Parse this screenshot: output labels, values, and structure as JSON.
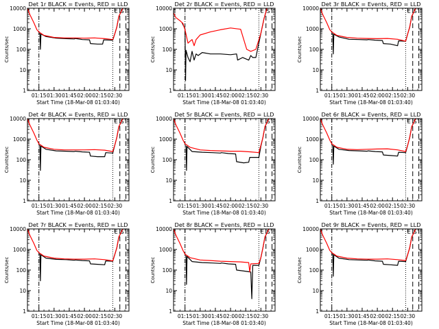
{
  "colors": {
    "events": "#000000",
    "lld": "#ff0000",
    "background": "#ffffff",
    "axis": "#000000"
  },
  "chart_data": [
    {
      "type": "line",
      "title": "Det 1r BLACK = Events, RED = LLD",
      "xlabel": "Start Time (18-Mar-08 01:03:40)",
      "ylabel": "Counts/sec",
      "x_ticks": [
        "01:15",
        "01:30",
        "01:45",
        "02:00",
        "02:15",
        "02:30"
      ],
      "y_ticks": [
        "1",
        "10",
        "100",
        "1000",
        "10000"
      ],
      "y_scale": "log",
      "ylim": [
        1,
        10000
      ],
      "xlim_minutes": [
        63.67,
        164
      ],
      "markers": [
        "E",
        "S"
      ],
      "series": [
        {
          "name": "Events",
          "color": "#000000",
          "x": [
            75,
            76,
            76.5,
            77,
            82,
            92,
            102,
            110,
            111,
            118,
            125,
            126,
            133,
            138,
            139,
            148,
            150,
            152,
            154,
            158
          ],
          "y": [
            600,
            580,
            100,
            560,
            420,
            350,
            330,
            320,
            340,
            300,
            290,
            190,
            180,
            180,
            290,
            280,
            560,
            1200,
            4000,
            10000
          ]
        },
        {
          "name": "LLD",
          "color": "#ff0000",
          "x": [
            63.67,
            66,
            70,
            73,
            75,
            80,
            90,
            100,
            110,
            120,
            130,
            140,
            148,
            150,
            152,
            154,
            158
          ],
          "y": [
            10000,
            5000,
            2000,
            900,
            700,
            480,
            380,
            360,
            360,
            350,
            360,
            330,
            300,
            560,
            1200,
            4000,
            10000
          ]
        }
      ]
    },
    {
      "type": "line",
      "title": "Det 2r BLACK = Events, RED = LLD",
      "xlabel": "Start Time (18-Mar-08 01:03:40)",
      "ylabel": "Counts/sec",
      "x_ticks": [
        "01:15",
        "01:30",
        "01:45",
        "02:00",
        "02:15",
        "02:30"
      ],
      "y_ticks": [
        "1",
        "10",
        "100",
        "1000",
        "10000"
      ],
      "y_scale": "log",
      "ylim": [
        1,
        10000
      ],
      "xlim_minutes": [
        63.67,
        164
      ],
      "markers": [
        "E",
        "S"
      ],
      "series": [
        {
          "name": "Events",
          "color": "#000000",
          "x": [
            72,
            75,
            75.5,
            76,
            78,
            80,
            82,
            84,
            86,
            88,
            92,
            100,
            110,
            120,
            126,
            127,
            132,
            138,
            140,
            142,
            145,
            150,
            153,
            156
          ],
          "y": [
            2000,
            1000,
            3,
            90,
            40,
            25,
            80,
            30,
            60,
            50,
            70,
            60,
            60,
            55,
            60,
            30,
            40,
            30,
            50,
            40,
            40,
            600,
            3000,
            10000
          ]
        },
        {
          "name": "LLD",
          "color": "#ff0000",
          "x": [
            63.67,
            66,
            70,
            73,
            75,
            78,
            80,
            82,
            84,
            86,
            90,
            100,
            110,
            120,
            130,
            136,
            140,
            145,
            150,
            153,
            156
          ],
          "y": [
            6000,
            3500,
            2500,
            1800,
            900,
            200,
            250,
            300,
            150,
            300,
            500,
            700,
            900,
            1100,
            950,
            100,
            80,
            100,
            600,
            3000,
            10000
          ]
        }
      ]
    },
    {
      "type": "line",
      "title": "Det 3r BLACK = Events, RED = LLD",
      "xlabel": "Start Time (18-Mar-08 01:03:40)",
      "ylabel": "Counts/sec",
      "x_ticks": [
        "01:15",
        "01:30",
        "01:45",
        "02:00",
        "02:15",
        "02:30"
      ],
      "y_ticks": [
        "1",
        "10",
        "100",
        "1000",
        "10000"
      ],
      "y_scale": "log",
      "ylim": [
        1,
        10000
      ],
      "xlim_minutes": [
        63.67,
        164
      ],
      "markers": [
        "E",
        "S"
      ],
      "series": [
        {
          "name": "Events",
          "color": "#000000",
          "x": [
            75,
            76,
            76.5,
            77,
            82,
            92,
            102,
            110,
            111,
            118,
            125,
            126,
            133,
            140,
            141,
            148,
            150,
            152,
            154,
            158
          ],
          "y": [
            600,
            560,
            60,
            540,
            400,
            310,
            300,
            290,
            300,
            280,
            270,
            190,
            180,
            150,
            260,
            250,
            560,
            1200,
            4000,
            10000
          ]
        },
        {
          "name": "LLD",
          "color": "#ff0000",
          "x": [
            63.67,
            66,
            70,
            73,
            75,
            80,
            90,
            100,
            110,
            120,
            130,
            140,
            148,
            150,
            152,
            154,
            158
          ],
          "y": [
            10000,
            5000,
            2000,
            900,
            700,
            480,
            380,
            350,
            340,
            330,
            340,
            310,
            250,
            560,
            1200,
            4000,
            10000
          ]
        }
      ]
    },
    {
      "type": "line",
      "title": "Det 4r BLACK = Events, RED = LLD",
      "xlabel": "Start Time (18-Mar-08 01:03:40)",
      "ylabel": "Counts/sec",
      "x_ticks": [
        "01:15",
        "01:30",
        "01:45",
        "02:00",
        "02:15",
        "02:30"
      ],
      "y_ticks": [
        "1",
        "10",
        "100",
        "1000",
        "10000"
      ],
      "y_scale": "log",
      "ylim": [
        1,
        10000
      ],
      "xlim_minutes": [
        63.67,
        164
      ],
      "markers": [
        "E",
        "S"
      ],
      "series": [
        {
          "name": "Events",
          "color": "#000000",
          "x": [
            75,
            76,
            76.5,
            77,
            82,
            92,
            102,
            110,
            111,
            118,
            125,
            126,
            133,
            140,
            141,
            148,
            150,
            152,
            154,
            158
          ],
          "y": [
            500,
            480,
            30,
            460,
            320,
            270,
            260,
            250,
            260,
            240,
            230,
            150,
            140,
            140,
            220,
            210,
            500,
            1200,
            4000,
            10000
          ]
        },
        {
          "name": "LLD",
          "color": "#ff0000",
          "x": [
            63.67,
            66,
            70,
            73,
            75,
            80,
            90,
            100,
            110,
            120,
            130,
            140,
            148,
            150,
            152,
            154,
            158
          ],
          "y": [
            10000,
            5000,
            2000,
            900,
            600,
            400,
            320,
            300,
            300,
            300,
            310,
            290,
            250,
            500,
            1200,
            4000,
            10000
          ]
        }
      ]
    },
    {
      "type": "line",
      "title": "Det 5r BLACK = Events, RED = LLD",
      "xlabel": "Start Time (18-Mar-08 01:03:40)",
      "ylabel": "Counts/sec",
      "x_ticks": [
        "01:15",
        "01:30",
        "01:45",
        "02:00",
        "02:15",
        "02:30"
      ],
      "y_ticks": [
        "1",
        "10",
        "100",
        "1000",
        "10000"
      ],
      "y_scale": "log",
      "ylim": [
        1,
        10000
      ],
      "xlim_minutes": [
        63.67,
        164
      ],
      "markers": [
        "E",
        "S"
      ],
      "series": [
        {
          "name": "Events",
          "color": "#000000",
          "x": [
            75,
            76,
            76.5,
            77,
            82,
            92,
            102,
            110,
            111,
            118,
            125,
            126,
            133,
            138,
            139,
            148,
            150,
            152,
            154,
            158
          ],
          "y": [
            480,
            460,
            30,
            440,
            250,
            230,
            220,
            210,
            220,
            200,
            190,
            80,
            70,
            75,
            130,
            130,
            450,
            1200,
            4000,
            10000
          ]
        },
        {
          "name": "LLD",
          "color": "#ff0000",
          "x": [
            63.67,
            66,
            70,
            73,
            75,
            80,
            90,
            100,
            110,
            120,
            130,
            140,
            148,
            150,
            152,
            154,
            158
          ],
          "y": [
            10000,
            5000,
            2000,
            900,
            600,
            400,
            300,
            280,
            270,
            260,
            260,
            240,
            220,
            500,
            1200,
            4000,
            10000
          ]
        }
      ]
    },
    {
      "type": "line",
      "title": "Det 6r BLACK = Events, RED = LLD",
      "xlabel": "Start Time (18-Mar-08 01:03:40)",
      "ylabel": "Counts/sec",
      "x_ticks": [
        "01:15",
        "01:30",
        "01:45",
        "02:00",
        "02:15",
        "02:30"
      ],
      "y_ticks": [
        "1",
        "10",
        "100",
        "1000",
        "10000"
      ],
      "y_scale": "log",
      "ylim": [
        1,
        10000
      ],
      "xlim_minutes": [
        63.67,
        164
      ],
      "markers": [
        "E",
        "S"
      ],
      "series": [
        {
          "name": "Events",
          "color": "#000000",
          "x": [
            75,
            76,
            76.5,
            77,
            82,
            92,
            102,
            110,
            111,
            118,
            125,
            126,
            133,
            140,
            141,
            148,
            150,
            152,
            154,
            158
          ],
          "y": [
            500,
            480,
            60,
            460,
            320,
            280,
            270,
            260,
            270,
            250,
            240,
            170,
            160,
            150,
            230,
            220,
            500,
            1200,
            4000,
            10000
          ]
        },
        {
          "name": "LLD",
          "color": "#ff0000",
          "x": [
            63.67,
            66,
            70,
            73,
            75,
            80,
            90,
            100,
            110,
            120,
            130,
            140,
            148,
            150,
            152,
            154,
            158
          ],
          "y": [
            10000,
            5000,
            2000,
            900,
            600,
            400,
            320,
            310,
            320,
            330,
            340,
            300,
            250,
            500,
            1200,
            4000,
            10000
          ]
        }
      ]
    },
    {
      "type": "line",
      "title": "Det 7r BLACK = Events, RED = LLD",
      "xlabel": "Start Time (18-Mar-08 01:03:40)",
      "ylabel": "Counts/sec",
      "x_ticks": [
        "01:15",
        "01:30",
        "01:45",
        "02:00",
        "02:15",
        "02:30"
      ],
      "y_ticks": [
        "1",
        "10",
        "100",
        "1000",
        "10000"
      ],
      "y_scale": "log",
      "ylim": [
        1,
        10000
      ],
      "xlim_minutes": [
        63.67,
        164
      ],
      "markers": [
        "E",
        "S"
      ],
      "series": [
        {
          "name": "Events",
          "color": "#000000",
          "x": [
            75,
            76,
            76.5,
            77,
            82,
            92,
            102,
            110,
            111,
            118,
            125,
            126,
            133,
            140,
            141,
            148,
            150,
            152,
            154,
            158
          ],
          "y": [
            600,
            580,
            30,
            560,
            380,
            330,
            320,
            300,
            310,
            290,
            280,
            200,
            190,
            180,
            280,
            270,
            560,
            1200,
            4000,
            10000
          ]
        },
        {
          "name": "LLD",
          "color": "#ff0000",
          "x": [
            63.67,
            66,
            70,
            73,
            75,
            80,
            90,
            100,
            110,
            120,
            130,
            140,
            148,
            150,
            152,
            154,
            158
          ],
          "y": [
            10000,
            5000,
            2000,
            900,
            700,
            480,
            380,
            350,
            340,
            340,
            350,
            320,
            280,
            560,
            1200,
            4000,
            10000
          ]
        }
      ]
    },
    {
      "type": "line",
      "title": "Det 8r BLACK = Events, RED = LLD",
      "xlabel": "Start Time (18-Mar-08 01:03:40)",
      "ylabel": "Counts/sec",
      "x_ticks": [
        "01:15",
        "01:30",
        "01:45",
        "02:00",
        "02:15",
        "02:30"
      ],
      "y_ticks": [
        "1",
        "10",
        "100",
        "1000",
        "10000"
      ],
      "y_scale": "log",
      "ylim": [
        1,
        10000
      ],
      "xlim_minutes": [
        63.67,
        164
      ],
      "markers": [
        "E",
        "S"
      ],
      "series": [
        {
          "name": "Events",
          "color": "#000000",
          "x": [
            75,
            76,
            76.5,
            77,
            82,
            92,
            102,
            110,
            111,
            118,
            125,
            126,
            133,
            140,
            141,
            142,
            143,
            148,
            150,
            152,
            154,
            158
          ],
          "y": [
            500,
            480,
            20,
            460,
            260,
            230,
            220,
            210,
            220,
            200,
            190,
            100,
            90,
            80,
            4,
            170,
            170,
            170,
            400,
            1200,
            4000,
            10000
          ]
        },
        {
          "name": "LLD",
          "color": "#ff0000",
          "x": [
            63.67,
            66,
            70,
            73,
            75,
            80,
            90,
            100,
            110,
            120,
            130,
            138,
            139,
            140,
            148,
            150,
            152,
            154,
            158
          ],
          "y": [
            10000,
            5000,
            2000,
            900,
            600,
            400,
            310,
            290,
            270,
            260,
            250,
            230,
            80,
            200,
            210,
            400,
            1200,
            4000,
            10000
          ]
        }
      ]
    },
    {
      "type": "line",
      "title": "Det 9r BLACK = Events, RED = LLD",
      "xlabel": "Start Time (18-Mar-08 01:03:40)",
      "ylabel": "Counts/sec",
      "x_ticks": [
        "01:15",
        "01:30",
        "01:45",
        "02:00",
        "02:15",
        "02:30"
      ],
      "y_ticks": [
        "1",
        "10",
        "100",
        "1000",
        "10000"
      ],
      "y_scale": "log",
      "ylim": [
        1,
        10000
      ],
      "xlim_minutes": [
        63.67,
        164
      ],
      "markers": [
        "E",
        "S"
      ],
      "series": [
        {
          "name": "Events",
          "color": "#000000",
          "x": [
            75,
            76,
            76.5,
            77,
            82,
            92,
            102,
            110,
            111,
            118,
            125,
            126,
            133,
            140,
            141,
            148,
            150,
            152,
            154,
            158
          ],
          "y": [
            600,
            580,
            50,
            560,
            380,
            320,
            310,
            300,
            310,
            280,
            270,
            190,
            180,
            170,
            270,
            260,
            560,
            1200,
            4000,
            10000
          ]
        },
        {
          "name": "LLD",
          "color": "#ff0000",
          "x": [
            63.67,
            66,
            70,
            73,
            75,
            80,
            90,
            100,
            110,
            120,
            130,
            140,
            148,
            150,
            152,
            154,
            158
          ],
          "y": [
            10000,
            5000,
            2000,
            900,
            700,
            480,
            380,
            350,
            340,
            340,
            350,
            320,
            290,
            560,
            1200,
            4000,
            10000
          ]
        }
      ]
    }
  ]
}
